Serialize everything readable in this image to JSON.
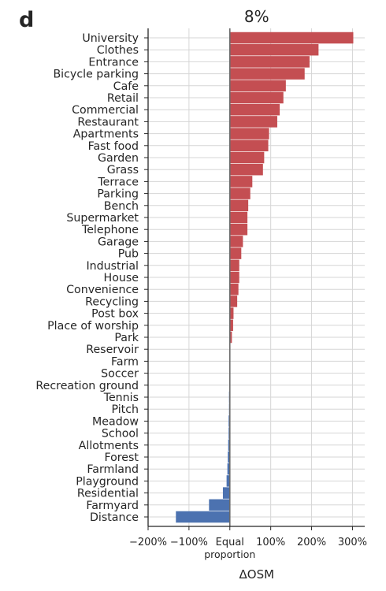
{
  "panel_label": "d",
  "chart_data": {
    "type": "bar",
    "orientation": "horizontal",
    "title": "8%",
    "xlabel": "ΔOSM",
    "ylabel": "",
    "xlim": [
      -200,
      330
    ],
    "xticks": [
      {
        "value": -200,
        "label": "−200%"
      },
      {
        "value": -100,
        "label": "−100%"
      },
      {
        "value": 0,
        "label": "Equal"
      },
      {
        "value": 100,
        "label": "100%"
      },
      {
        "value": 200,
        "label": "200%"
      },
      {
        "value": 300,
        "label": "300%"
      }
    ],
    "xtick_sublabel": "proportion",
    "grid": true,
    "positive_color": "#c44e52",
    "negative_color": "#4c72b0",
    "categories": [
      "University",
      "Clothes",
      "Entrance",
      "Bicycle parking",
      "Cafe",
      "Retail",
      "Commercial",
      "Restaurant",
      "Apartments",
      "Fast food",
      "Garden",
      "Grass",
      "Terrace",
      "Parking",
      "Bench",
      "Supermarket",
      "Telephone",
      "Garage",
      "Pub",
      "Industrial",
      "House",
      "Convenience",
      "Recycling",
      "Post box",
      "Place of worship",
      "Park",
      "Reservoir",
      "Farm",
      "Soccer",
      "Recreation ground",
      "Tennis",
      "Pitch",
      "Meadow",
      "School",
      "Allotments",
      "Forest",
      "Farmland",
      "Playground",
      "Residential",
      "Farmyard",
      "Distance"
    ],
    "values": [
      302,
      217,
      195,
      183,
      137,
      131,
      122,
      116,
      96,
      94,
      84,
      81,
      55,
      50,
      45,
      43,
      43,
      32,
      28,
      23,
      23,
      21,
      18,
      9,
      8,
      5,
      1,
      0,
      0,
      0,
      -2,
      -2,
      -3,
      -3,
      -4,
      -5,
      -6,
      -8,
      -17,
      -51,
      -132
    ]
  }
}
